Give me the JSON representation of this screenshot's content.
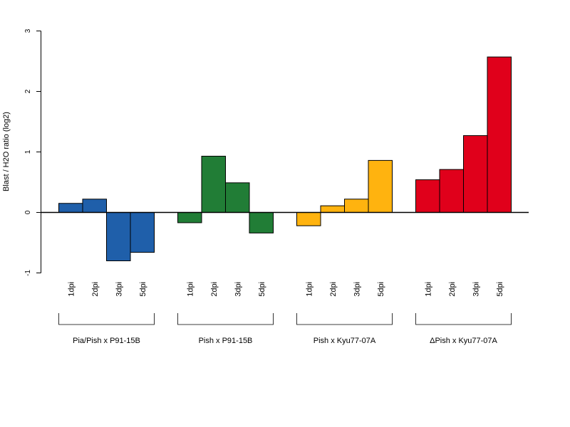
{
  "chart_data": {
    "type": "bar",
    "ylabel": "Blast / H2O ratio (log2)",
    "ylim": [
      -1,
      3
    ],
    "yticks": [
      "-1",
      "0",
      "1",
      "2",
      "3"
    ],
    "categories": [
      "1dpi",
      "2dpi",
      "3dpi",
      "5dpi"
    ],
    "groups": [
      {
        "name": "Pia/Pish x P91-15B",
        "color": "#1f5faa",
        "values": [
          0.15,
          0.22,
          -0.8,
          -0.66
        ]
      },
      {
        "name": "Pish x P91-15B",
        "color": "#217d36",
        "values": [
          -0.17,
          0.93,
          0.49,
          -0.34
        ]
      },
      {
        "name": "Pish x Kyu77-07A",
        "color": "#ffb30f",
        "values": [
          -0.22,
          0.11,
          0.22,
          0.86
        ]
      },
      {
        "name": "ΔPish x Kyu77-07A",
        "color": "#e0001b",
        "values": [
          0.54,
          0.71,
          1.27,
          2.57
        ]
      }
    ],
    "grid": false,
    "legend": "none"
  }
}
